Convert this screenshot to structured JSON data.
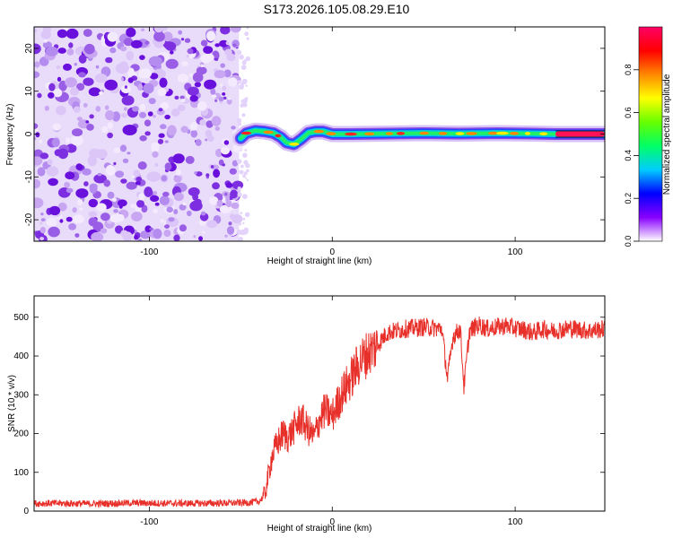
{
  "title": "S173.2026.105.08.29.E10",
  "chart_data": [
    {
      "type": "heatmap",
      "name": "spectrogram",
      "xlabel": "Height of straight line (km)",
      "ylabel": "Frequency (Hz)",
      "xlim": [
        -163,
        149
      ],
      "ylim": [
        -25,
        25
      ],
      "xticks": [
        {
          "value": -100,
          "label": "-100"
        },
        {
          "value": 0,
          "label": "0"
        },
        {
          "value": 100,
          "label": "100"
        }
      ],
      "yticks": [
        {
          "value": -20,
          "label": "-20"
        },
        {
          "value": -10,
          "label": "-10"
        },
        {
          "value": 0,
          "label": "0"
        },
        {
          "value": 10,
          "label": "10"
        },
        {
          "value": 20,
          "label": "20"
        }
      ],
      "noise_region": [
        -163,
        -51
      ],
      "signal_track": [
        {
          "x": -50,
          "y": -1.0
        },
        {
          "x": -47,
          "y": 0.2
        },
        {
          "x": -42,
          "y": 0.8
        },
        {
          "x": -37,
          "y": 0.6
        },
        {
          "x": -32,
          "y": 0.2
        },
        {
          "x": -28,
          "y": -0.8
        },
        {
          "x": -25,
          "y": -2.0
        },
        {
          "x": -21,
          "y": -2.4
        },
        {
          "x": -17,
          "y": -1.2
        },
        {
          "x": -13,
          "y": 0.3
        },
        {
          "x": -9,
          "y": 0.6
        },
        {
          "x": -5,
          "y": 0.6
        },
        {
          "x": 0,
          "y": 0.0
        },
        {
          "x": 10,
          "y": 0.0
        },
        {
          "x": 30,
          "y": 0.1
        },
        {
          "x": 50,
          "y": 0.2
        },
        {
          "x": 70,
          "y": 0.1
        },
        {
          "x": 90,
          "y": 0.2
        },
        {
          "x": 110,
          "y": 0.1
        },
        {
          "x": 122,
          "y": 0.0
        },
        {
          "x": 149,
          "y": 0.0
        }
      ],
      "colorbar": {
        "label": "Normalized spectral amplitude",
        "range": [
          0,
          1
        ],
        "ticks": [
          {
            "value": 0.0,
            "label": "0.0"
          },
          {
            "value": 0.2,
            "label": "0.2"
          },
          {
            "value": 0.4,
            "label": "0.4"
          },
          {
            "value": 0.6,
            "label": "0.6"
          },
          {
            "value": 0.8,
            "label": "0.8"
          }
        ],
        "colors": [
          "#ffffff",
          "#8800ff",
          "#0000ff",
          "#00ccff",
          "#00ff66",
          "#66ff00",
          "#ffff00",
          "#ff8800",
          "#ff0000",
          "#ff0066"
        ]
      }
    },
    {
      "type": "line",
      "name": "snr",
      "xlabel": "Height of straight line (km)",
      "ylabel": "SNR (10 * v/v)",
      "xlim": [
        -163,
        149
      ],
      "ylim": [
        0,
        555
      ],
      "xticks": [
        {
          "value": -100,
          "label": "-100"
        },
        {
          "value": 0,
          "label": "0"
        },
        {
          "value": 100,
          "label": "100"
        }
      ],
      "yticks": [
        {
          "value": 0,
          "label": "0"
        },
        {
          "value": 100,
          "label": "100"
        },
        {
          "value": 200,
          "label": "200"
        },
        {
          "value": 300,
          "label": "300"
        },
        {
          "value": 400,
          "label": "400"
        },
        {
          "value": 500,
          "label": "500"
        }
      ],
      "color": "#e8302a",
      "series": [
        {
          "name": "SNR",
          "x": [
            -163,
            -150,
            -130,
            -110,
            -90,
            -70,
            -55,
            -45,
            -40,
            -37,
            -35,
            -33,
            -30,
            -27,
            -24,
            -20,
            -17,
            -14,
            -10,
            -7,
            -4,
            0,
            5,
            10,
            15,
            20,
            25,
            30,
            40,
            50,
            60,
            63,
            66,
            70,
            72,
            75,
            80,
            85,
            90,
            95,
            100,
            105,
            110,
            115,
            120,
            125,
            130,
            140,
            149
          ],
          "y": [
            20,
            20,
            19,
            21,
            20,
            20,
            21,
            22,
            25,
            40,
            90,
            140,
            175,
            200,
            190,
            220,
            240,
            215,
            190,
            235,
            260,
            245,
            300,
            340,
            385,
            410,
            430,
            460,
            470,
            475,
            470,
            340,
            450,
            470,
            320,
            465,
            480,
            470,
            475,
            478,
            472,
            468,
            460,
            470,
            465,
            468,
            472,
            465,
            470
          ]
        }
      ]
    }
  ]
}
